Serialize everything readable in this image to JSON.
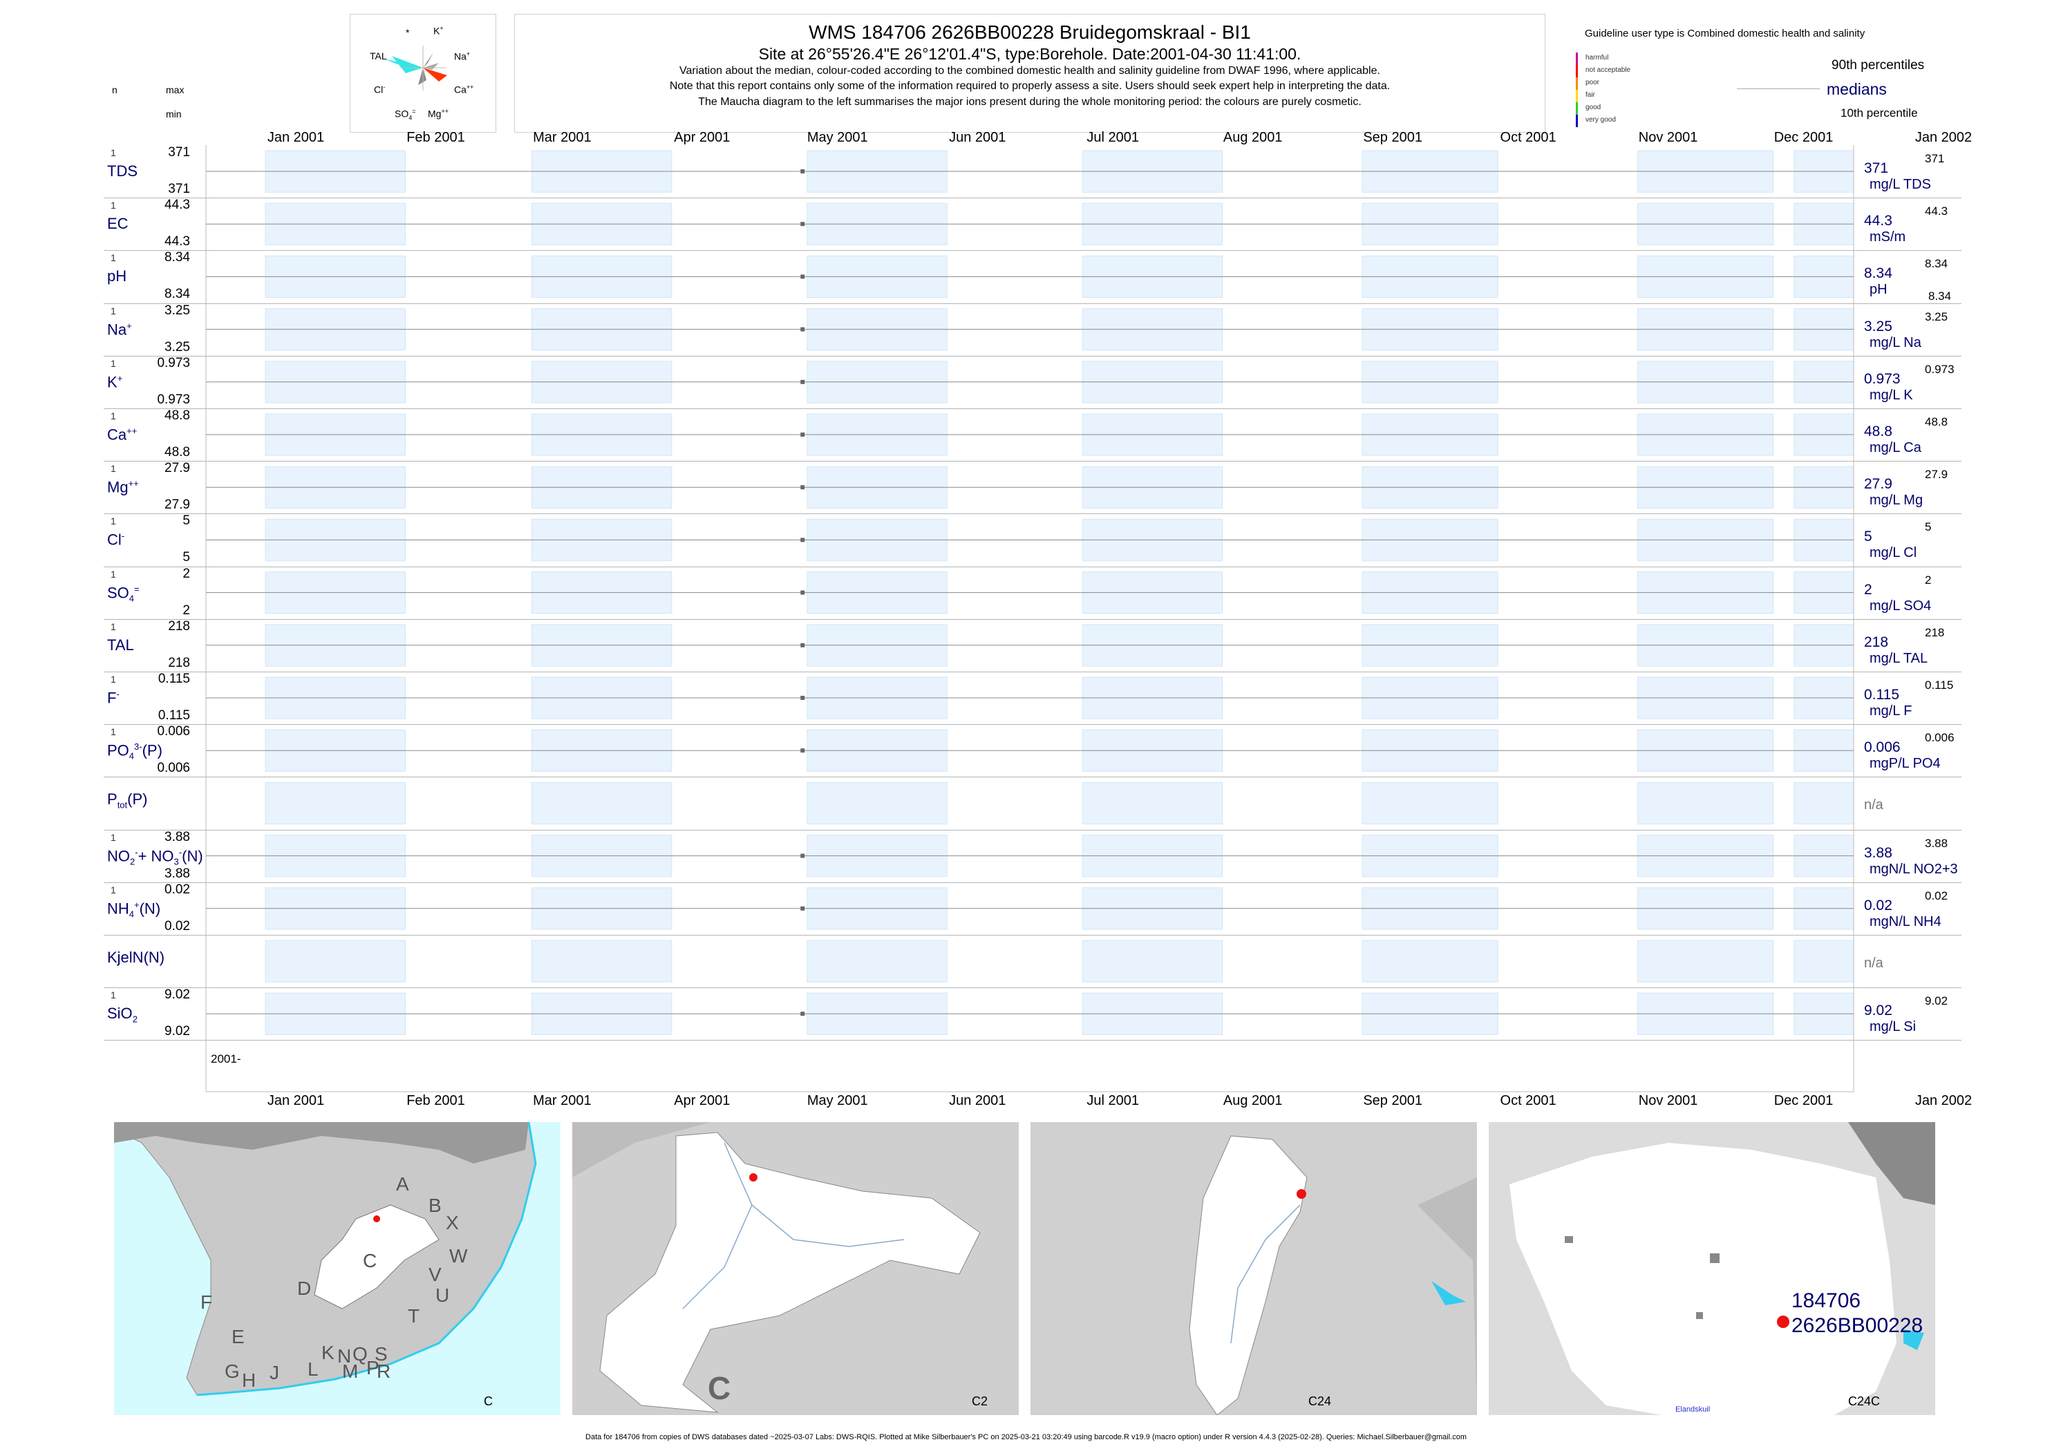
{
  "header": {
    "title": "WMS 184706 2626BB00228 Bruidegomskraal - BI1",
    "subtitle": "Site at 26°55'26.4\"E 26°12'01.4\"S, type:Borehole. Date:2001-04-30 11:41:00.",
    "note1": "Variation about the median,  colour-coded according to the combined domestic health and salinity guideline from DWAF 1996, where applicable.",
    "note2": "Note that this report contains only some of the information required to properly assess a site. Users should seek expert help in interpreting the data.",
    "note3": "The Maucha diagram to the left summarises the major ions present during the whole monitoring period: the colours are purely cosmetic."
  },
  "left_header": {
    "n": "n",
    "max": "max",
    "min": "min"
  },
  "maucha": {
    "labels": {
      "star": "*",
      "k": "K",
      "k_sup": "+",
      "na": "Na",
      "na_sup": "+",
      "tal": "TAL",
      "ca": "Ca",
      "ca_sup": "++",
      "cl": "Cl",
      "cl_sup": "-",
      "so4": "SO",
      "so4_sub": "4",
      "so4_sup": "=",
      "mg": "Mg",
      "mg_sup": "++"
    },
    "colors": {
      "tal": "#33e6e6",
      "ca": "#ff3300",
      "grey": "#8a8a8a"
    }
  },
  "legend": {
    "title": "Guideline user type is Combined domestic health and salinity",
    "items": [
      {
        "label": "harmful",
        "color": "#cc0099"
      },
      {
        "label": "not acceptable",
        "color": "#ff0000"
      },
      {
        "label": "poor",
        "color": "#ff8800"
      },
      {
        "label": "fair",
        "color": "#ffdd00"
      },
      {
        "label": "good",
        "color": "#33cc33"
      },
      {
        "label": "very good",
        "color": "#0000cc"
      }
    ],
    "p90_label": "90th percentiles",
    "medians_label": "medians",
    "p10_label": "10th percentile"
  },
  "months": [
    "Jan 2001",
    "Feb 2001",
    "Mar 2001",
    "Apr 2001",
    "May 2001",
    "Jun 2001",
    "Jul 2001",
    "Aug 2001",
    "Sep 2001",
    "Oct 2001",
    "Nov 2001",
    "Dec 2001",
    "Jan 2002"
  ],
  "year_label": "2001-",
  "colors": {
    "band": "#e8f3fd",
    "band_edge": "#d3e6f8",
    "label": "#00006b",
    "point": "#666666",
    "median_line": "#8a8a8a"
  },
  "chart_data": {
    "type": "scatter",
    "x_axis": {
      "range": [
        "2001-01-01",
        "2002-01-01"
      ],
      "tick_labels": [
        "Jan 2001",
        "Feb 2001",
        "Mar 2001",
        "Apr 2001",
        "May 2001",
        "Jun 2001",
        "Jul 2001",
        "Aug 2001",
        "Sep 2001",
        "Oct 2001",
        "Nov 2001",
        "Dec 2001",
        "Jan 2002"
      ]
    },
    "sample_date": "2001-04-30",
    "variables": [
      {
        "key": "tds",
        "name": "TDS",
        "n": "1",
        "max": "371",
        "min": "371",
        "value": 371,
        "median_text": "371",
        "p90_text": "371",
        "unit": "mg/L TDS"
      },
      {
        "key": "ec",
        "name": "EC",
        "n": "1",
        "max": "44.3",
        "min": "44.3",
        "value": 44.3,
        "median_text": "44.3",
        "p90_text": "44.3",
        "unit": "mS/m"
      },
      {
        "key": "ph",
        "name": "pH",
        "n": "1",
        "max": "8.34",
        "min": "8.34",
        "value": 8.34,
        "median_text": "8.34",
        "p90_text": "8.34",
        "p10_text": "8.34",
        "unit": "pH"
      },
      {
        "key": "na",
        "name": "Na",
        "sup": "+",
        "n": "1",
        "max": "3.25",
        "min": "3.25",
        "value": 3.25,
        "median_text": "3.25",
        "p90_text": "3.25",
        "unit": "mg/L Na"
      },
      {
        "key": "k",
        "name": "K",
        "sup": "+",
        "n": "1",
        "max": "0.973",
        "min": "0.973",
        "value": 0.973,
        "median_text": "0.973",
        "p90_text": "0.973",
        "unit": "mg/L K"
      },
      {
        "key": "ca",
        "name": "Ca",
        "sup": "++",
        "n": "1",
        "max": "48.8",
        "min": "48.8",
        "value": 48.8,
        "median_text": "48.8",
        "p90_text": "48.8",
        "unit": "mg/L Ca"
      },
      {
        "key": "mg",
        "name": "Mg",
        "sup": "++",
        "n": "1",
        "max": "27.9",
        "min": "27.9",
        "value": 27.9,
        "median_text": "27.9",
        "p90_text": "27.9",
        "unit": "mg/L Mg"
      },
      {
        "key": "cl",
        "name": "Cl",
        "sup": "-",
        "n": "1",
        "max": "5",
        "min": "5",
        "value": 5,
        "median_text": "5",
        "p90_text": "5",
        "unit": "mg/L Cl"
      },
      {
        "key": "so4",
        "name": "SO",
        "sub": "4",
        "sup": "=",
        "n": "1",
        "max": "2",
        "min": "2",
        "value": 2,
        "median_text": "2",
        "p90_text": "2",
        "unit": "mg/L SO4"
      },
      {
        "key": "tal",
        "name": "TAL",
        "n": "1",
        "max": "218",
        "min": "218",
        "value": 218,
        "median_text": "218",
        "p90_text": "218",
        "unit": "mg/L TAL"
      },
      {
        "key": "f",
        "name": "F",
        "sup": "-",
        "n": "1",
        "max": "0.115",
        "min": "0.115",
        "value": 0.115,
        "median_text": "0.115",
        "p90_text": "0.115",
        "unit": "mg/L F"
      },
      {
        "key": "po4",
        "name": "PO",
        "sub": "4",
        "sup": "3-",
        "suffix": "(P)",
        "n": "1",
        "max": "0.006",
        "min": "0.006",
        "value": 0.006,
        "median_text": "0.006",
        "p90_text": "0.006",
        "unit": "mgP/L PO4"
      },
      {
        "key": "ptot",
        "name": "P",
        "sub": "tot",
        "suffix": "(P)",
        "na_text": "n/a"
      },
      {
        "key": "no23",
        "name": "NO",
        "sub": "2",
        "sup": "-",
        "mid": "+ NO",
        "sub2": "3",
        "sup2": "-",
        "suffix": "(N)",
        "n": "1",
        "max": "3.88",
        "min": "3.88",
        "value": 3.88,
        "median_text": "3.88",
        "p90_text": "3.88",
        "unit": "mgN/L NO2+3"
      },
      {
        "key": "nh4",
        "name": "NH",
        "sub": "4",
        "sup": "+",
        "suffix": "(N)",
        "n": "1",
        "max": "0.02",
        "min": "0.02",
        "value": 0.02,
        "median_text": "0.02",
        "p90_text": "0.02",
        "unit": "mgN/L NH4"
      },
      {
        "key": "kjeln",
        "name": "KjelN(N)",
        "na_text": "n/a"
      },
      {
        "key": "sio2",
        "name": "SiO",
        "sub": "2",
        "n": "1",
        "max": "9.02",
        "min": "9.02",
        "value": 9.02,
        "median_text": "9.02",
        "p90_text": "9.02",
        "unit": "mg/L Si"
      }
    ]
  },
  "maps": {
    "panels": [
      {
        "caption": "C",
        "region_letters": [
          "A",
          "B",
          "X",
          "W",
          "C",
          "D",
          "V",
          "U",
          "T",
          "F",
          "E",
          "G",
          "H",
          "J",
          "K",
          "L",
          "N",
          "Q",
          "M",
          "P",
          "S",
          "R"
        ]
      },
      {
        "caption": "C2",
        "big_letter": "C"
      },
      {
        "caption": "C24"
      },
      {
        "caption": "C24C",
        "site_id": "184706",
        "site_code": "2626BB00228",
        "place": "Elandskuil"
      }
    ],
    "colors": {
      "sea": "#d6fbff",
      "land": "#c8c8c8",
      "catchment": "#ffffff",
      "river": "#33ccee",
      "site": "#ee1111"
    }
  },
  "footer": "Data for 184706 from copies of DWS databases dated ~2025-03-07 Labs: DWS-RQIS. Plotted at Mike Silberbauer's PC on 2025-03-21 03:20:49 using barcode.R v19.9 (macro option) under R version 4.4.3 (2025-02-28). Queries: Michael.Silberbauer@gmail.com"
}
